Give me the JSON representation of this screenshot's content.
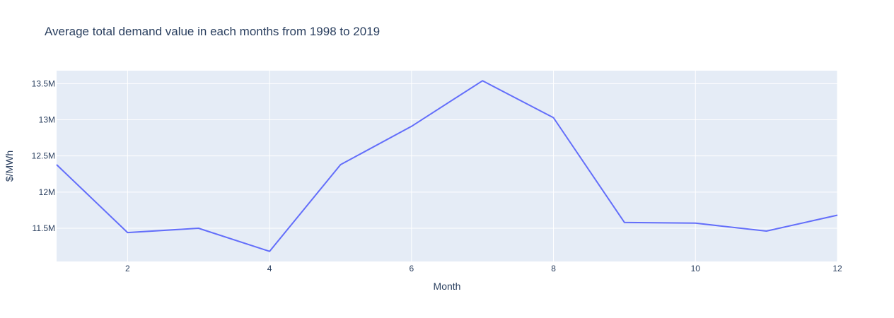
{
  "chart_data": {
    "type": "line",
    "title": "Average total demand value in each months from 1998 to 2019",
    "xlabel": "Month",
    "ylabel": "$/MWh",
    "xlim": [
      1,
      12
    ],
    "ylim": [
      11040000,
      13680000
    ],
    "x_ticks": [
      2,
      4,
      6,
      8,
      10,
      12
    ],
    "y_ticks": [
      {
        "value": 11500000,
        "label": "11.5M"
      },
      {
        "value": 12000000,
        "label": "12M"
      },
      {
        "value": 12500000,
        "label": "12.5M"
      },
      {
        "value": 13000000,
        "label": "13M"
      },
      {
        "value": 13500000,
        "label": "13.5M"
      }
    ],
    "grid": true,
    "series": [
      {
        "color": "#636efa",
        "x": [
          1,
          2,
          3,
          4,
          5,
          6,
          7,
          8,
          9,
          10,
          11,
          12
        ],
        "y": [
          12380000,
          11440000,
          11500000,
          11180000,
          12380000,
          12910000,
          13540000,
          13030000,
          11580000,
          11570000,
          11460000,
          11680000
        ]
      }
    ],
    "colors": {
      "plot_bg": "#e5ecf6",
      "grid": "#ffffff",
      "text": "#2a3f5f"
    }
  }
}
